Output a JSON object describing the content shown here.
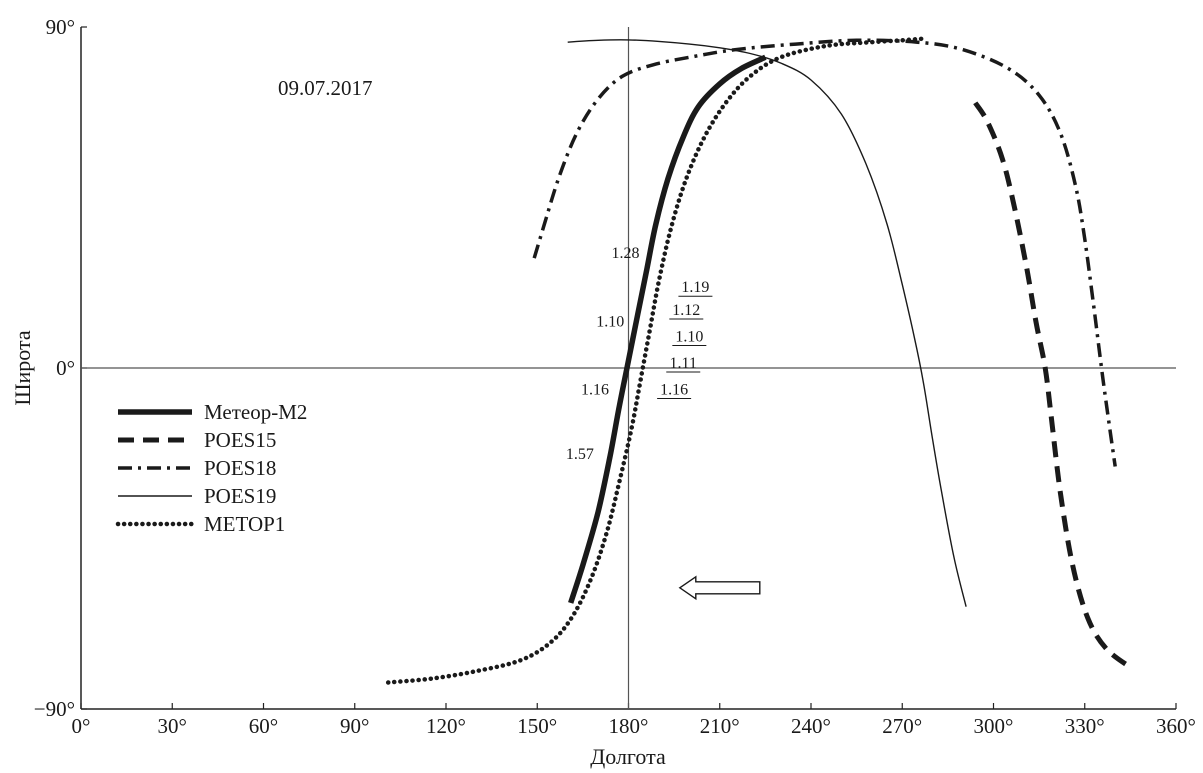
{
  "chart_data": {
    "type": "line",
    "title": "",
    "date": "09.07.2017",
    "xlabel": "Долгота",
    "ylabel": "Широта",
    "xlim": [
      0,
      360
    ],
    "ylim": [
      -90,
      90
    ],
    "x_ticks": [
      {
        "value": 0,
        "label": "0°"
      },
      {
        "value": 30,
        "label": "30°"
      },
      {
        "value": 60,
        "label": "60°"
      },
      {
        "value": 90,
        "label": "90°"
      },
      {
        "value": 120,
        "label": "120°"
      },
      {
        "value": 150,
        "label": "150°"
      },
      {
        "value": 180,
        "label": "180°"
      },
      {
        "value": 210,
        "label": "210°"
      },
      {
        "value": 240,
        "label": "240°"
      },
      {
        "value": 270,
        "label": "270°"
      },
      {
        "value": 300,
        "label": "300°"
      },
      {
        "value": 330,
        "label": "330°"
      },
      {
        "value": 360,
        "label": "360°"
      }
    ],
    "y_ticks": [
      {
        "value": 90,
        "label": "90°"
      },
      {
        "value": 0,
        "label": "0°"
      },
      {
        "value": -90,
        "label": "−90°"
      }
    ],
    "reference_lines": {
      "x": 180,
      "y": 0
    },
    "legend_position": "left-middle",
    "series": [
      {
        "name": "Метеор-М2",
        "style": "solid-thick",
        "x": [
          161,
          165,
          170,
          174,
          177,
          180,
          183,
          186,
          189,
          193,
          198,
          203,
          210,
          217,
          225
        ],
        "y": [
          -62,
          -52,
          -38,
          -23,
          -10,
          2,
          14,
          26,
          38,
          50,
          61,
          69,
          75,
          79,
          82
        ]
      },
      {
        "name": "POES15",
        "style": "dashed-thick",
        "x": [
          294,
          298,
          303,
          307,
          311,
          314,
          317,
          319,
          322,
          326,
          331,
          337,
          345
        ],
        "y": [
          70,
          65,
          55,
          42,
          26,
          12,
          0,
          -13,
          -33,
          -52,
          -66,
          -74,
          -79
        ]
      },
      {
        "name": "POES18",
        "style": "dashdot",
        "x": [
          149,
          152,
          157,
          163,
          170,
          178,
          188,
          200,
          215,
          235,
          255,
          275,
          290,
          305,
          315,
          322,
          327,
          330,
          333,
          336,
          340
        ],
        "y": [
          29,
          37,
          50,
          62,
          71,
          77,
          80,
          82,
          84,
          85.5,
          86.5,
          86,
          84,
          79,
          72,
          62,
          48,
          34,
          16,
          -3,
          -26
        ]
      },
      {
        "name": "POES19",
        "style": "solid-thin",
        "x": [
          160,
          170,
          180,
          190,
          200,
          210,
          220,
          230,
          240,
          250,
          258,
          265,
          270,
          274,
          277,
          280,
          283,
          287,
          291
        ],
        "y": [
          86,
          86.5,
          86.6,
          86.2,
          85.5,
          84.5,
          83,
          80.5,
          76,
          67,
          54,
          38,
          22,
          8,
          -4,
          -19,
          -33,
          -50,
          -63
        ]
      },
      {
        "name": "METOP1",
        "style": "dotted-thick",
        "x": [
          101,
          115,
          130,
          145,
          155,
          162,
          168,
          173,
          177,
          181,
          184,
          187,
          190,
          194,
          199,
          205,
          212,
          220,
          230,
          245,
          260,
          270,
          278
        ],
        "y": [
          -83,
          -82,
          -80,
          -77,
          -72,
          -65,
          -55,
          -43,
          -30,
          -16,
          -3,
          10,
          23,
          37,
          50,
          61,
          70,
          77,
          82,
          85,
          86,
          86.5,
          87
        ]
      }
    ],
    "annotations": [
      {
        "text": "1.28",
        "x": 179,
        "y": 29,
        "underline": false
      },
      {
        "text": "1.10",
        "x": 174,
        "y": 11,
        "underline": false
      },
      {
        "text": "1.16",
        "x": 169,
        "y": -7,
        "underline": false
      },
      {
        "text": "1.57",
        "x": 164,
        "y": -24,
        "underline": false
      },
      {
        "text": "1.19",
        "x": 202,
        "y": 20,
        "underline": true
      },
      {
        "text": "1.12",
        "x": 199,
        "y": 14,
        "underline": true
      },
      {
        "text": "1.10",
        "x": 200,
        "y": 7,
        "underline": true
      },
      {
        "text": "1.11",
        "x": 198,
        "y": 0,
        "underline": true
      },
      {
        "text": "1.16",
        "x": 195,
        "y": -7,
        "underline": true
      }
    ],
    "direction_arrow": {
      "points": "left",
      "x": 210,
      "y": -58
    }
  }
}
